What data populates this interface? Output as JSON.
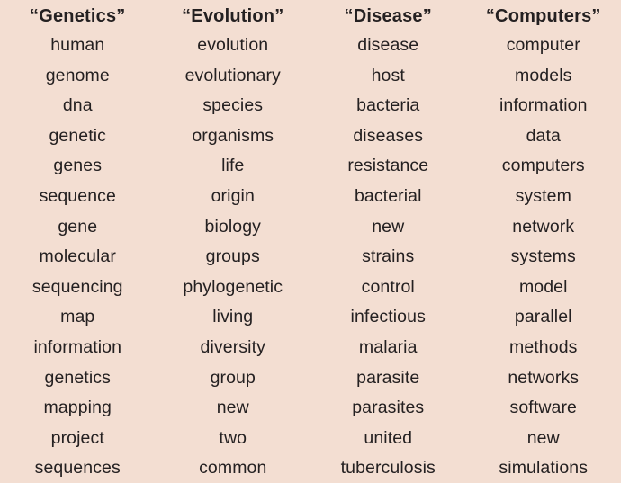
{
  "page": {
    "background_color": "#f3ded2",
    "text_color": "#242021",
    "description": "Four topic columns of most-probable words"
  },
  "columns": [
    {
      "header": "“Genetics”",
      "words": [
        "human",
        "genome",
        "dna",
        "genetic",
        "genes",
        "sequence",
        "gene",
        "molecular",
        "sequencing",
        "map",
        "information",
        "genetics",
        "mapping",
        "project",
        "sequences"
      ]
    },
    {
      "header": "“Evolution”",
      "words": [
        "evolution",
        "evolutionary",
        "species",
        "organisms",
        "life",
        "origin",
        "biology",
        "groups",
        "phylogenetic",
        "living",
        "diversity",
        "group",
        "new",
        "two",
        "common"
      ]
    },
    {
      "header": "“Disease”",
      "words": [
        "disease",
        "host",
        "bacteria",
        "diseases",
        "resistance",
        "bacterial",
        "new",
        "strains",
        "control",
        "infectious",
        "malaria",
        "parasite",
        "parasites",
        "united",
        "tuberculosis"
      ]
    },
    {
      "header": "“Computers”",
      "words": [
        "computer",
        "models",
        "information",
        "data",
        "computers",
        "system",
        "network",
        "systems",
        "model",
        "parallel",
        "methods",
        "networks",
        "software",
        "new",
        "simulations"
      ]
    }
  ]
}
